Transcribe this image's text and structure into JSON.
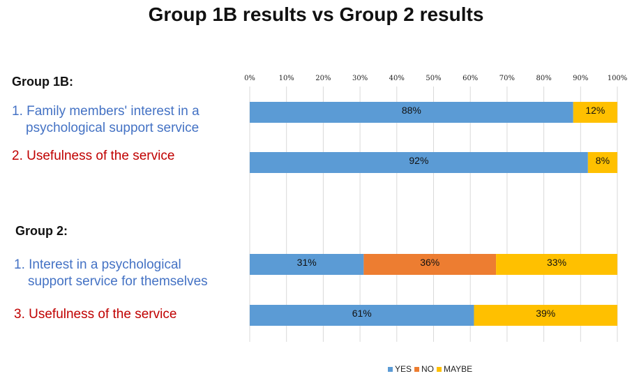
{
  "title": "Group 1B results vs Group 2 results",
  "groups": [
    {
      "heading": "Group 1B:",
      "questions": [
        {
          "line1": "1. Family members' interest in a",
          "line2": "psychological support service",
          "color": "#4472C4"
        },
        {
          "line1": "2. Usefulness of the service",
          "line2": "",
          "color": "#C00000"
        }
      ]
    },
    {
      "heading": "Group 2:",
      "questions": [
        {
          "line1": "1. Interest in a psychological",
          "line2": "support service for themselves",
          "color": "#4472C4"
        },
        {
          "line1": "3. Usefulness of the service",
          "line2": "",
          "color": "#C00000"
        }
      ]
    }
  ],
  "chart_data": {
    "type": "bar",
    "orientation": "horizontal",
    "stacked": true,
    "x_tick_labels": [
      "0%",
      "10%",
      "20%",
      "30%",
      "40%",
      "50%",
      "60%",
      "70%",
      "80%",
      "90%",
      "100%"
    ],
    "xlim": [
      0,
      100
    ],
    "grid": true,
    "legend_position": "bottom",
    "series": [
      {
        "name": "YES",
        "color": "#5B9BD5",
        "values": [
          88,
          92,
          31,
          61
        ],
        "labels": [
          "88%",
          "92%",
          "31%",
          "61%"
        ]
      },
      {
        "name": "NO",
        "color": "#ED7D31",
        "values": [
          0,
          0,
          36,
          0
        ],
        "labels": [
          "",
          "",
          "36%",
          ""
        ]
      },
      {
        "name": "MAYBE",
        "color": "#FFC000",
        "values": [
          12,
          8,
          33,
          39
        ],
        "labels": [
          "12%",
          "8%",
          "33%",
          "39%"
        ]
      }
    ]
  }
}
